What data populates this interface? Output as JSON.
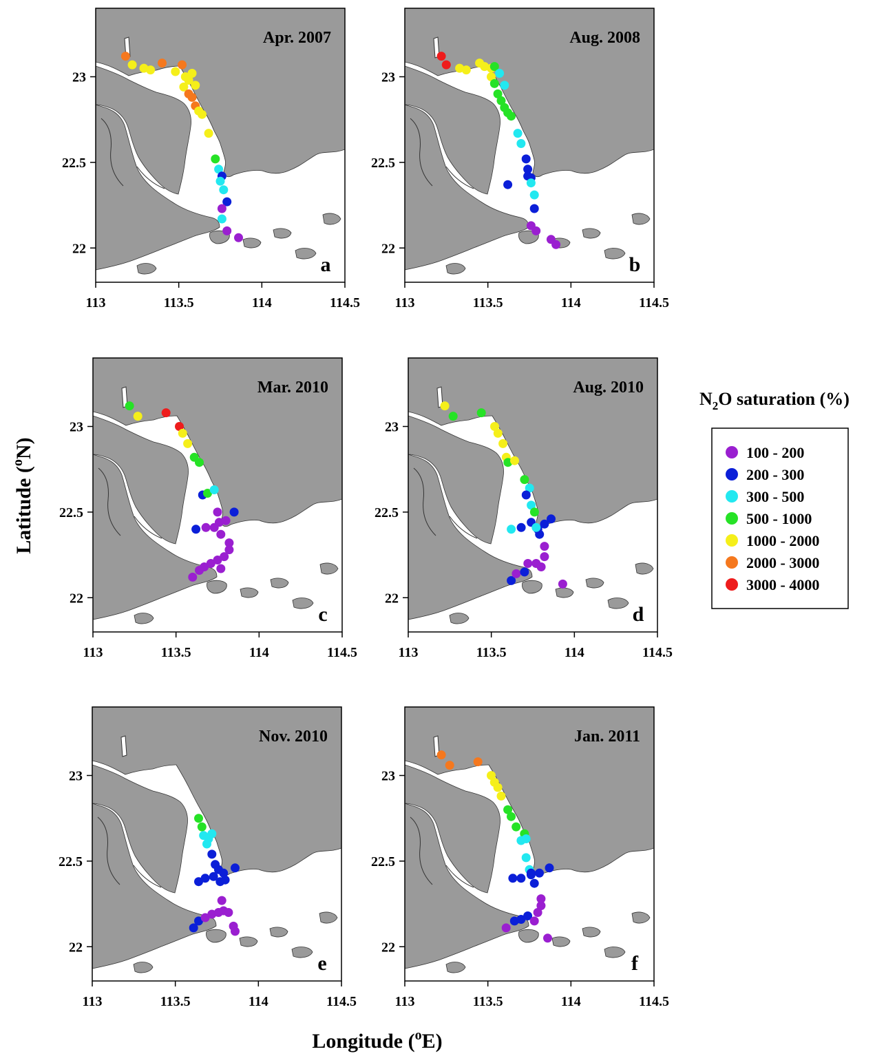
{
  "figure": {
    "xlabel": "Longitude (",
    "xlabel_sup": "o",
    "xlabel_end": "E)",
    "ylabel": "Latitude (",
    "ylabel_sup": "o",
    "ylabel_end": "N)",
    "x_ticks": [
      "113",
      "113.5",
      "114",
      "114.5"
    ],
    "y_ticks": [
      "22",
      "22.5",
      "23"
    ]
  },
  "legend": {
    "title_prefix": "N",
    "title_sub": "2",
    "title_suffix": "O saturation (%)",
    "items": [
      {
        "label": "100 - 200",
        "color": "#9a1fd0"
      },
      {
        "label": "200 - 300",
        "color": "#0b1fd8"
      },
      {
        "label": "300 - 500",
        "color": "#22e8f0"
      },
      {
        "label": "500 - 1000",
        "color": "#26e226"
      },
      {
        "label": "1000 - 2000",
        "color": "#f5ef1a"
      },
      {
        "label": "2000 - 3000",
        "color": "#f5781e"
      },
      {
        "label": "3000 - 4000",
        "color": "#ee1c1c"
      }
    ]
  },
  "chart_data": {
    "type": "scatter",
    "xlim": [
      113,
      114.5
    ],
    "ylim": [
      21.8,
      23.4
    ],
    "x_tick_values": [
      113,
      113.5,
      114,
      114.5
    ],
    "y_tick_values": [
      22,
      22.5,
      23
    ],
    "color_classes": [
      "100 - 200",
      "200 - 300",
      "300 - 500",
      "500 - 1000",
      "1000 - 2000",
      "2000 - 3000",
      "3000 - 4000"
    ],
    "panels": [
      {
        "title": "Apr. 2007",
        "letter": "a",
        "points": [
          [
            113.18,
            23.12,
            5
          ],
          [
            113.22,
            23.07,
            4
          ],
          [
            113.29,
            23.05,
            4
          ],
          [
            113.33,
            23.04,
            4
          ],
          [
            113.4,
            23.08,
            5
          ],
          [
            113.48,
            23.03,
            4
          ],
          [
            113.52,
            23.07,
            5
          ],
          [
            113.54,
            23.0,
            4
          ],
          [
            113.56,
            22.98,
            4
          ],
          [
            113.58,
            23.02,
            4
          ],
          [
            113.6,
            22.95,
            4
          ],
          [
            113.53,
            22.94,
            4
          ],
          [
            113.56,
            22.9,
            5
          ],
          [
            113.58,
            22.88,
            5
          ],
          [
            113.6,
            22.83,
            5
          ],
          [
            113.62,
            22.8,
            4
          ],
          [
            113.64,
            22.78,
            4
          ],
          [
            113.68,
            22.67,
            4
          ],
          [
            113.72,
            22.52,
            3
          ],
          [
            113.74,
            22.46,
            2
          ],
          [
            113.76,
            22.42,
            1
          ],
          [
            113.75,
            22.39,
            2
          ],
          [
            113.77,
            22.34,
            2
          ],
          [
            113.79,
            22.27,
            1
          ],
          [
            113.76,
            22.23,
            0
          ],
          [
            113.76,
            22.17,
            2
          ],
          [
            113.79,
            22.1,
            0
          ],
          [
            113.86,
            22.06,
            0
          ]
        ]
      },
      {
        "title": "Aug. 2008",
        "letter": "b",
        "points": [
          [
            113.22,
            23.12,
            6
          ],
          [
            113.25,
            23.07,
            6
          ],
          [
            113.33,
            23.05,
            4
          ],
          [
            113.37,
            23.04,
            4
          ],
          [
            113.45,
            23.08,
            4
          ],
          [
            113.48,
            23.06,
            4
          ],
          [
            113.52,
            23.05,
            4
          ],
          [
            113.54,
            23.06,
            3
          ],
          [
            113.57,
            23.02,
            2
          ],
          [
            113.6,
            22.95,
            2
          ],
          [
            113.52,
            23.0,
            4
          ],
          [
            113.54,
            22.96,
            3
          ],
          [
            113.56,
            22.9,
            3
          ],
          [
            113.58,
            22.86,
            3
          ],
          [
            113.6,
            22.82,
            3
          ],
          [
            113.62,
            22.79,
            3
          ],
          [
            113.64,
            22.77,
            3
          ],
          [
            113.68,
            22.67,
            2
          ],
          [
            113.7,
            22.61,
            2
          ],
          [
            113.73,
            22.52,
            1
          ],
          [
            113.74,
            22.46,
            1
          ],
          [
            113.74,
            22.42,
            1
          ],
          [
            113.76,
            22.41,
            1
          ],
          [
            113.76,
            22.38,
            2
          ],
          [
            113.62,
            22.37,
            1
          ],
          [
            113.78,
            22.31,
            2
          ],
          [
            113.78,
            22.23,
            1
          ],
          [
            113.76,
            22.13,
            0
          ],
          [
            113.79,
            22.1,
            0
          ],
          [
            113.88,
            22.05,
            0
          ],
          [
            113.91,
            22.02,
            0
          ]
        ]
      },
      {
        "title": "Mar. 2010",
        "letter": "c",
        "points": [
          [
            113.22,
            23.12,
            3
          ],
          [
            113.27,
            23.06,
            4
          ],
          [
            113.44,
            23.08,
            6
          ],
          [
            113.52,
            23.0,
            6
          ],
          [
            113.54,
            22.96,
            4
          ],
          [
            113.57,
            22.9,
            4
          ],
          [
            113.61,
            22.82,
            3
          ],
          [
            113.64,
            22.79,
            3
          ],
          [
            113.66,
            22.6,
            1
          ],
          [
            113.69,
            22.61,
            3
          ],
          [
            113.73,
            22.63,
            2
          ],
          [
            113.75,
            22.5,
            0
          ],
          [
            113.85,
            22.5,
            1
          ],
          [
            113.62,
            22.4,
            1
          ],
          [
            113.68,
            22.41,
            0
          ],
          [
            113.73,
            22.41,
            0
          ],
          [
            113.76,
            22.44,
            0
          ],
          [
            113.8,
            22.45,
            0
          ],
          [
            113.77,
            22.37,
            0
          ],
          [
            113.6,
            22.12,
            0
          ],
          [
            113.64,
            22.16,
            0
          ],
          [
            113.67,
            22.18,
            0
          ],
          [
            113.71,
            22.2,
            0
          ],
          [
            113.75,
            22.22,
            0
          ],
          [
            113.79,
            22.24,
            0
          ],
          [
            113.82,
            22.28,
            0
          ],
          [
            113.77,
            22.17,
            0
          ],
          [
            113.82,
            22.32,
            0
          ]
        ]
      },
      {
        "title": "Aug. 2010",
        "letter": "d",
        "points": [
          [
            113.22,
            23.12,
            4
          ],
          [
            113.27,
            23.06,
            3
          ],
          [
            113.44,
            23.08,
            3
          ],
          [
            113.52,
            23.0,
            4
          ],
          [
            113.54,
            22.96,
            4
          ],
          [
            113.57,
            22.9,
            4
          ],
          [
            113.59,
            22.82,
            4
          ],
          [
            113.6,
            22.79,
            3
          ],
          [
            113.64,
            22.8,
            4
          ],
          [
            113.7,
            22.69,
            3
          ],
          [
            113.73,
            22.64,
            2
          ],
          [
            113.71,
            22.6,
            1
          ],
          [
            113.74,
            22.54,
            2
          ],
          [
            113.76,
            22.5,
            3
          ],
          [
            113.86,
            22.46,
            1
          ],
          [
            113.82,
            22.43,
            1
          ],
          [
            113.62,
            22.4,
            2
          ],
          [
            113.68,
            22.41,
            1
          ],
          [
            113.74,
            22.44,
            1
          ],
          [
            113.78,
            22.4,
            1
          ],
          [
            113.79,
            22.37,
            1
          ],
          [
            113.77,
            22.41,
            2
          ],
          [
            113.62,
            22.1,
            1
          ],
          [
            113.65,
            22.14,
            0
          ],
          [
            113.7,
            22.15,
            1
          ],
          [
            113.72,
            22.2,
            0
          ],
          [
            113.77,
            22.2,
            0
          ],
          [
            113.8,
            22.18,
            0
          ],
          [
            113.82,
            22.24,
            0
          ],
          [
            113.82,
            22.3,
            0
          ],
          [
            113.93,
            22.08,
            0
          ]
        ]
      },
      {
        "title": "Nov. 2010",
        "letter": "e",
        "points": [
          [
            113.64,
            22.75,
            3
          ],
          [
            113.66,
            22.7,
            3
          ],
          [
            113.67,
            22.65,
            2
          ],
          [
            113.7,
            22.63,
            2
          ],
          [
            113.72,
            22.66,
            2
          ],
          [
            113.69,
            22.6,
            2
          ],
          [
            113.72,
            22.54,
            1
          ],
          [
            113.74,
            22.48,
            1
          ],
          [
            113.76,
            22.45,
            1
          ],
          [
            113.79,
            22.43,
            1
          ],
          [
            113.73,
            22.41,
            1
          ],
          [
            113.77,
            22.38,
            1
          ],
          [
            113.8,
            22.39,
            1
          ],
          [
            113.64,
            22.38,
            1
          ],
          [
            113.68,
            22.4,
            1
          ],
          [
            113.86,
            22.46,
            1
          ],
          [
            113.61,
            22.11,
            1
          ],
          [
            113.64,
            22.15,
            1
          ],
          [
            113.68,
            22.17,
            0
          ],
          [
            113.72,
            22.19,
            0
          ],
          [
            113.76,
            22.2,
            0
          ],
          [
            113.79,
            22.21,
            0
          ],
          [
            113.82,
            22.2,
            0
          ],
          [
            113.78,
            22.27,
            0
          ],
          [
            113.85,
            22.12,
            0
          ],
          [
            113.86,
            22.09,
            0
          ]
        ]
      },
      {
        "title": "Jan. 2011",
        "letter": "f",
        "points": [
          [
            113.22,
            23.12,
            5
          ],
          [
            113.27,
            23.06,
            5
          ],
          [
            113.44,
            23.08,
            5
          ],
          [
            113.52,
            23.0,
            4
          ],
          [
            113.54,
            22.96,
            4
          ],
          [
            113.56,
            22.93,
            4
          ],
          [
            113.58,
            22.88,
            4
          ],
          [
            113.62,
            22.8,
            3
          ],
          [
            113.64,
            22.76,
            3
          ],
          [
            113.67,
            22.7,
            3
          ],
          [
            113.72,
            22.66,
            3
          ],
          [
            113.7,
            22.62,
            2
          ],
          [
            113.73,
            22.63,
            2
          ],
          [
            113.73,
            22.52,
            2
          ],
          [
            113.75,
            22.45,
            2
          ],
          [
            113.76,
            22.43,
            1
          ],
          [
            113.81,
            22.43,
            1
          ],
          [
            113.87,
            22.46,
            1
          ],
          [
            113.65,
            22.4,
            1
          ],
          [
            113.7,
            22.4,
            1
          ],
          [
            113.76,
            22.42,
            1
          ],
          [
            113.78,
            22.37,
            1
          ],
          [
            113.61,
            22.11,
            0
          ],
          [
            113.66,
            22.15,
            1
          ],
          [
            113.7,
            22.16,
            1
          ],
          [
            113.74,
            22.18,
            1
          ],
          [
            113.8,
            22.2,
            0
          ],
          [
            113.82,
            22.24,
            0
          ],
          [
            113.82,
            22.28,
            0
          ],
          [
            113.78,
            22.15,
            0
          ],
          [
            113.86,
            22.05,
            0
          ]
        ]
      }
    ]
  }
}
